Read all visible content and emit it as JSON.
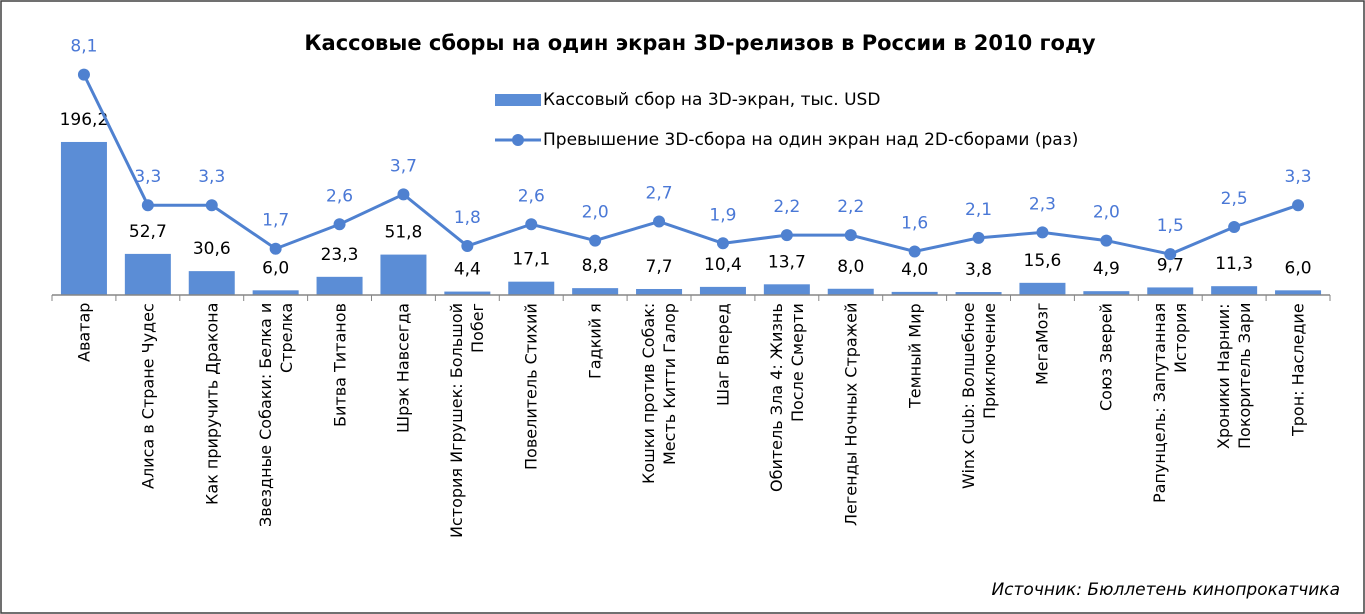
{
  "chart_data": {
    "type": "bar_line",
    "title": "Кассовые сборы на один экран 3D-релизов в России в 2010 году",
    "source": "Источник: Бюллетень кинопрокатчика",
    "categories": [
      "Аватар",
      "Алиса в Стране Чудес",
      "Как приручить Дракона",
      "Звездные Собаки: Белка и Стрелка",
      "Битва Титанов",
      "Шрэк Навсегда",
      "История Игрушек: Большой Побег",
      "Повелитель Стихий",
      "Гадкий я",
      "Кошки против Собак: Месть Китти Галор",
      "Шаг Вперед",
      "Обитель Зла 4: Жизнь После Смерти",
      "Легенды Ночных Стражей",
      "Темный Мир",
      "Winx Club: Волшебное Приключение",
      "МегаМозг",
      "Союз Зверей",
      "Рапунцель: Запутанная История",
      "Хроники Нарнии: Покоритель Зари",
      "Трон: Наследие"
    ],
    "series": [
      {
        "name": "Кассовый сбор на 3D-экран, тыс. USD",
        "type": "bar",
        "color": "#5b8dd6",
        "values": [
          196.2,
          52.7,
          30.6,
          6.0,
          23.3,
          51.8,
          4.4,
          17.1,
          8.8,
          7.7,
          10.4,
          13.7,
          8.0,
          4.0,
          3.8,
          15.6,
          4.9,
          9.7,
          11.3,
          6.0
        ],
        "value_labels": [
          "196,2",
          "52,7",
          "30,6",
          "6,0",
          "23,3",
          "51,8",
          "4,4",
          "17,1",
          "8,8",
          "7,7",
          "10,4",
          "13,7",
          "8,0",
          "4,0",
          "3,8",
          "15,6",
          "4,9",
          "9,7",
          "11,3",
          "6,0"
        ]
      },
      {
        "name": "Превышение 3D-сбора на один экран над 2D-сборами (раз)",
        "type": "line",
        "axis": "y2",
        "color": "#4f81d0",
        "label_color": "#4a78d6",
        "values": [
          8.1,
          3.3,
          3.3,
          1.7,
          2.6,
          3.7,
          1.8,
          2.6,
          2.0,
          2.7,
          1.9,
          2.2,
          2.2,
          1.6,
          2.1,
          2.3,
          2.0,
          1.5,
          2.5,
          3.3
        ],
        "value_labels": [
          "8,1",
          "3,3",
          "3,3",
          "1,7",
          "2,6",
          "3,7",
          "1,8",
          "2,6",
          "2,0",
          "2,7",
          "1,9",
          "2,2",
          "2,2",
          "1,6",
          "2,1",
          "2,3",
          "2,0",
          "1,5",
          "2,5",
          "3,3"
        ]
      }
    ],
    "ylim": [
      0,
      300
    ],
    "y2lim": [
      0,
      8.6
    ]
  }
}
